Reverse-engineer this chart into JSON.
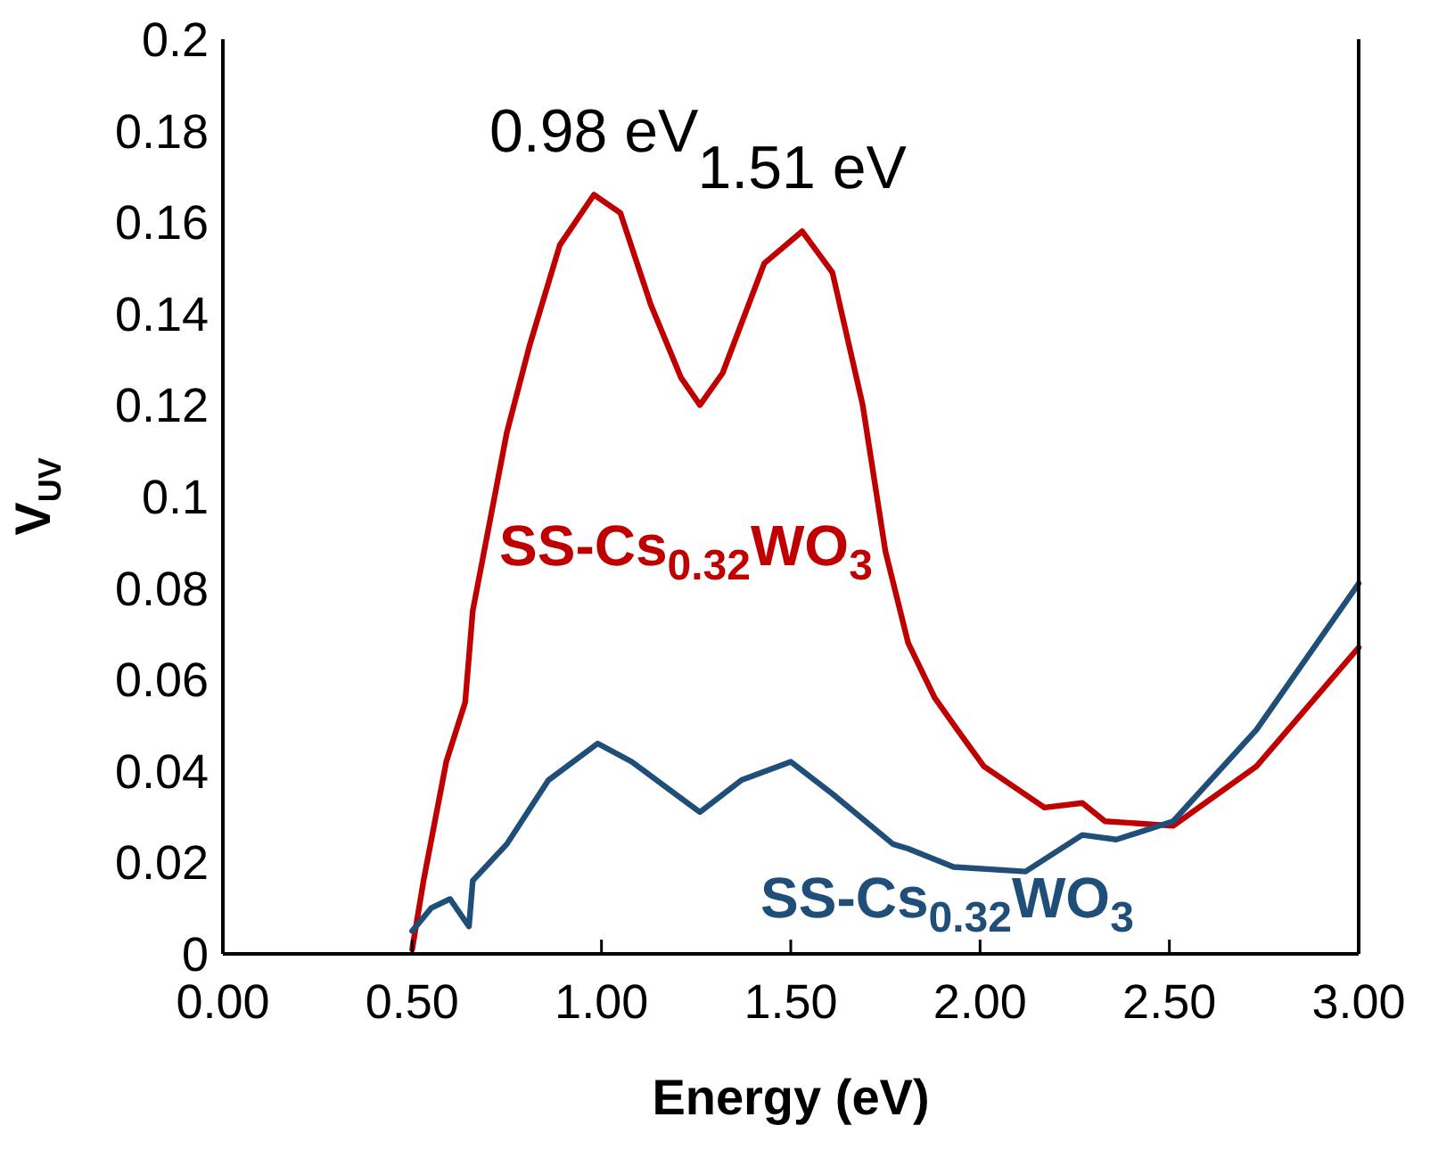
{
  "chart_data": {
    "type": "line",
    "xlabel": "Energy (eV)",
    "ylabel": "V$_{UV}$",
    "xlim": [
      0,
      3
    ],
    "xticks": [
      {
        "value": 0,
        "label": "0.00"
      },
      {
        "value": 0.5,
        "label": "0.50"
      },
      {
        "value": 1,
        "label": "1.00"
      },
      {
        "value": 1.5,
        "label": "1.50"
      },
      {
        "value": 2,
        "label": "2.00"
      },
      {
        "value": 2.5,
        "label": "2.50"
      },
      {
        "value": 3,
        "label": "3.00"
      }
    ],
    "ylim": [
      0,
      0.2
    ],
    "yticks": [
      0,
      0.02,
      0.04,
      0.06,
      0.08,
      0.1,
      0.12,
      0.14,
      0.16,
      0.18,
      0.2
    ],
    "grid": false,
    "marker": "none",
    "line_style": "solid",
    "annotations": [
      {
        "text": "0.98 eV",
        "x": 0.98,
        "y": 0.166
      },
      {
        "text": "1.51 eV",
        "x": 1.53,
        "y": 0.158
      }
    ],
    "series": [
      {
        "name": "SS-Cs$_{0.32}$WO$_{3}$",
        "color": "#c00000",
        "x": [
          0.5,
          0.53,
          0.59,
          0.64,
          0.66,
          0.75,
          0.81,
          0.89,
          0.98,
          1.05,
          1.13,
          1.21,
          1.26,
          1.32,
          1.43,
          1.53,
          1.61,
          1.69,
          1.75,
          1.81,
          1.88,
          1.94,
          2.01,
          2.17,
          2.27,
          2.33,
          2.51,
          2.73,
          3.0
        ],
        "values": [
          0.001,
          0.016,
          0.042,
          0.055,
          0.075,
          0.114,
          0.133,
          0.155,
          0.166,
          0.162,
          0.142,
          0.126,
          0.12,
          0.127,
          0.151,
          0.158,
          0.149,
          0.12,
          0.088,
          0.068,
          0.056,
          0.049,
          0.041,
          0.032,
          0.033,
          0.029,
          0.028,
          0.041,
          0.067
        ]
      },
      {
        "name": "SS-Cs$_{0.32}$WO$_{3}$",
        "color": "#1f4e79",
        "x": [
          0.5,
          0.55,
          0.6,
          0.65,
          0.66,
          0.75,
          0.86,
          0.99,
          1.08,
          1.26,
          1.37,
          1.5,
          1.61,
          1.77,
          1.81,
          1.93,
          2.12,
          2.27,
          2.36,
          2.51,
          2.73,
          3.0
        ],
        "values": [
          0.005,
          0.01,
          0.012,
          0.006,
          0.016,
          0.024,
          0.038,
          0.046,
          0.042,
          0.031,
          0.038,
          0.042,
          0.035,
          0.024,
          0.023,
          0.019,
          0.018,
          0.026,
          0.025,
          0.029,
          0.049,
          0.081
        ]
      }
    ]
  }
}
